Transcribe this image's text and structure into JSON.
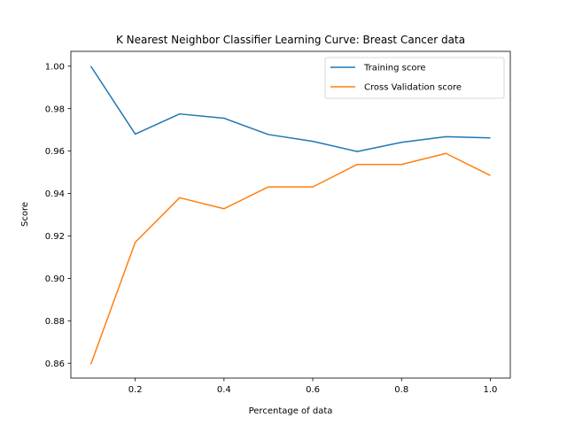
{
  "chart_data": {
    "type": "line",
    "title": "K Nearest Neighbor Classifier Learning Curve: Breast Cancer data",
    "xlabel": "Percentage of data",
    "ylabel": "Score",
    "x": [
      0.1,
      0.2,
      0.3,
      0.4,
      0.5,
      0.6,
      0.7,
      0.8,
      0.9,
      1.0
    ],
    "xlim": [
      0.055,
      1.045
    ],
    "ylim": [
      0.853,
      1.007
    ],
    "xticks": [
      0.2,
      0.4,
      0.6,
      0.8,
      1.0
    ],
    "xtick_labels": [
      "0.2",
      "0.4",
      "0.6",
      "0.8",
      "1.0"
    ],
    "yticks": [
      0.86,
      0.88,
      0.9,
      0.92,
      0.94,
      0.96,
      0.98,
      1.0
    ],
    "ytick_labels": [
      "0.86",
      "0.88",
      "0.90",
      "0.92",
      "0.94",
      "0.96",
      "0.98",
      "1.00"
    ],
    "grid": false,
    "legend_position": "top-right",
    "series": [
      {
        "name": "Training score",
        "color": "#1f77b4",
        "values": [
          1.0,
          0.968,
          0.9775,
          0.9755,
          0.9678,
          0.9646,
          0.9598,
          0.9641,
          0.9668,
          0.9662
        ]
      },
      {
        "name": "Cross Validation score",
        "color": "#ff7f0e",
        "values": [
          0.8595,
          0.917,
          0.938,
          0.9328,
          0.9431,
          0.9431,
          0.9537,
          0.9537,
          0.9589,
          0.9485
        ]
      }
    ]
  }
}
